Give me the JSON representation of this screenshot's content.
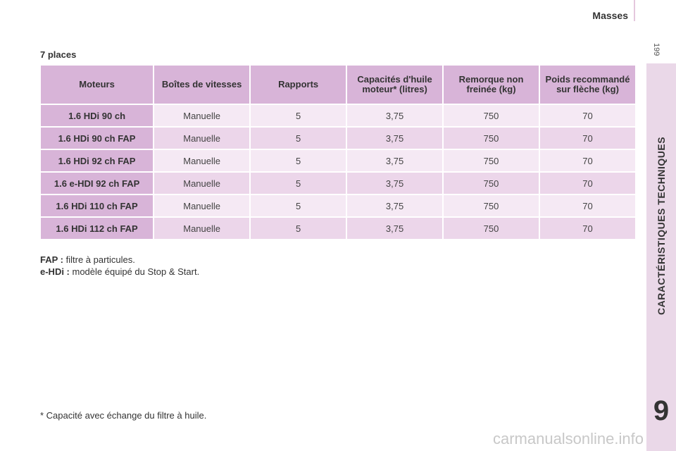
{
  "header": {
    "title": "Masses"
  },
  "page_number": "199",
  "sidebar": {
    "section": "CARACTÉRISTIQUES TECHNIQUES",
    "chapter": "9"
  },
  "section_title": "7 places",
  "table": {
    "headers": [
      "Moteurs",
      "Boîtes de vitesses",
      "Rapports",
      "Capacités d'huile moteur* (litres)",
      "Remorque non freinée (kg)",
      "Poids recommandé sur flèche (kg)"
    ],
    "rows": [
      [
        "1.6 HDi 90 ch",
        "Manuelle",
        "5",
        "3,75",
        "750",
        "70"
      ],
      [
        "1.6 HDi 90 ch FAP",
        "Manuelle",
        "5",
        "3,75",
        "750",
        "70"
      ],
      [
        "1.6 HDi 92 ch FAP",
        "Manuelle",
        "5",
        "3,75",
        "750",
        "70"
      ],
      [
        "1.6 e-HDI 92 ch FAP",
        "Manuelle",
        "5",
        "3,75",
        "750",
        "70"
      ],
      [
        "1.6 HDi 110 ch FAP",
        "Manuelle",
        "5",
        "3,75",
        "750",
        "70"
      ],
      [
        "1.6 HDi 112 ch FAP",
        "Manuelle",
        "5",
        "3,75",
        "750",
        "70"
      ]
    ]
  },
  "notes": [
    {
      "term": "FAP :",
      "text": " filtre à particules."
    },
    {
      "term": "e-HDi :",
      "text": " modèle équipé du Stop & Start."
    }
  ],
  "footnote": "* Capacité avec échange du filtre à huile.",
  "watermark": "carmanualsonline.info",
  "colors": {
    "header_cell": "#d8b4d8",
    "row_light": "#f5e9f4",
    "row_dark": "#ecd6ea",
    "side_band": "#ead8e8"
  }
}
